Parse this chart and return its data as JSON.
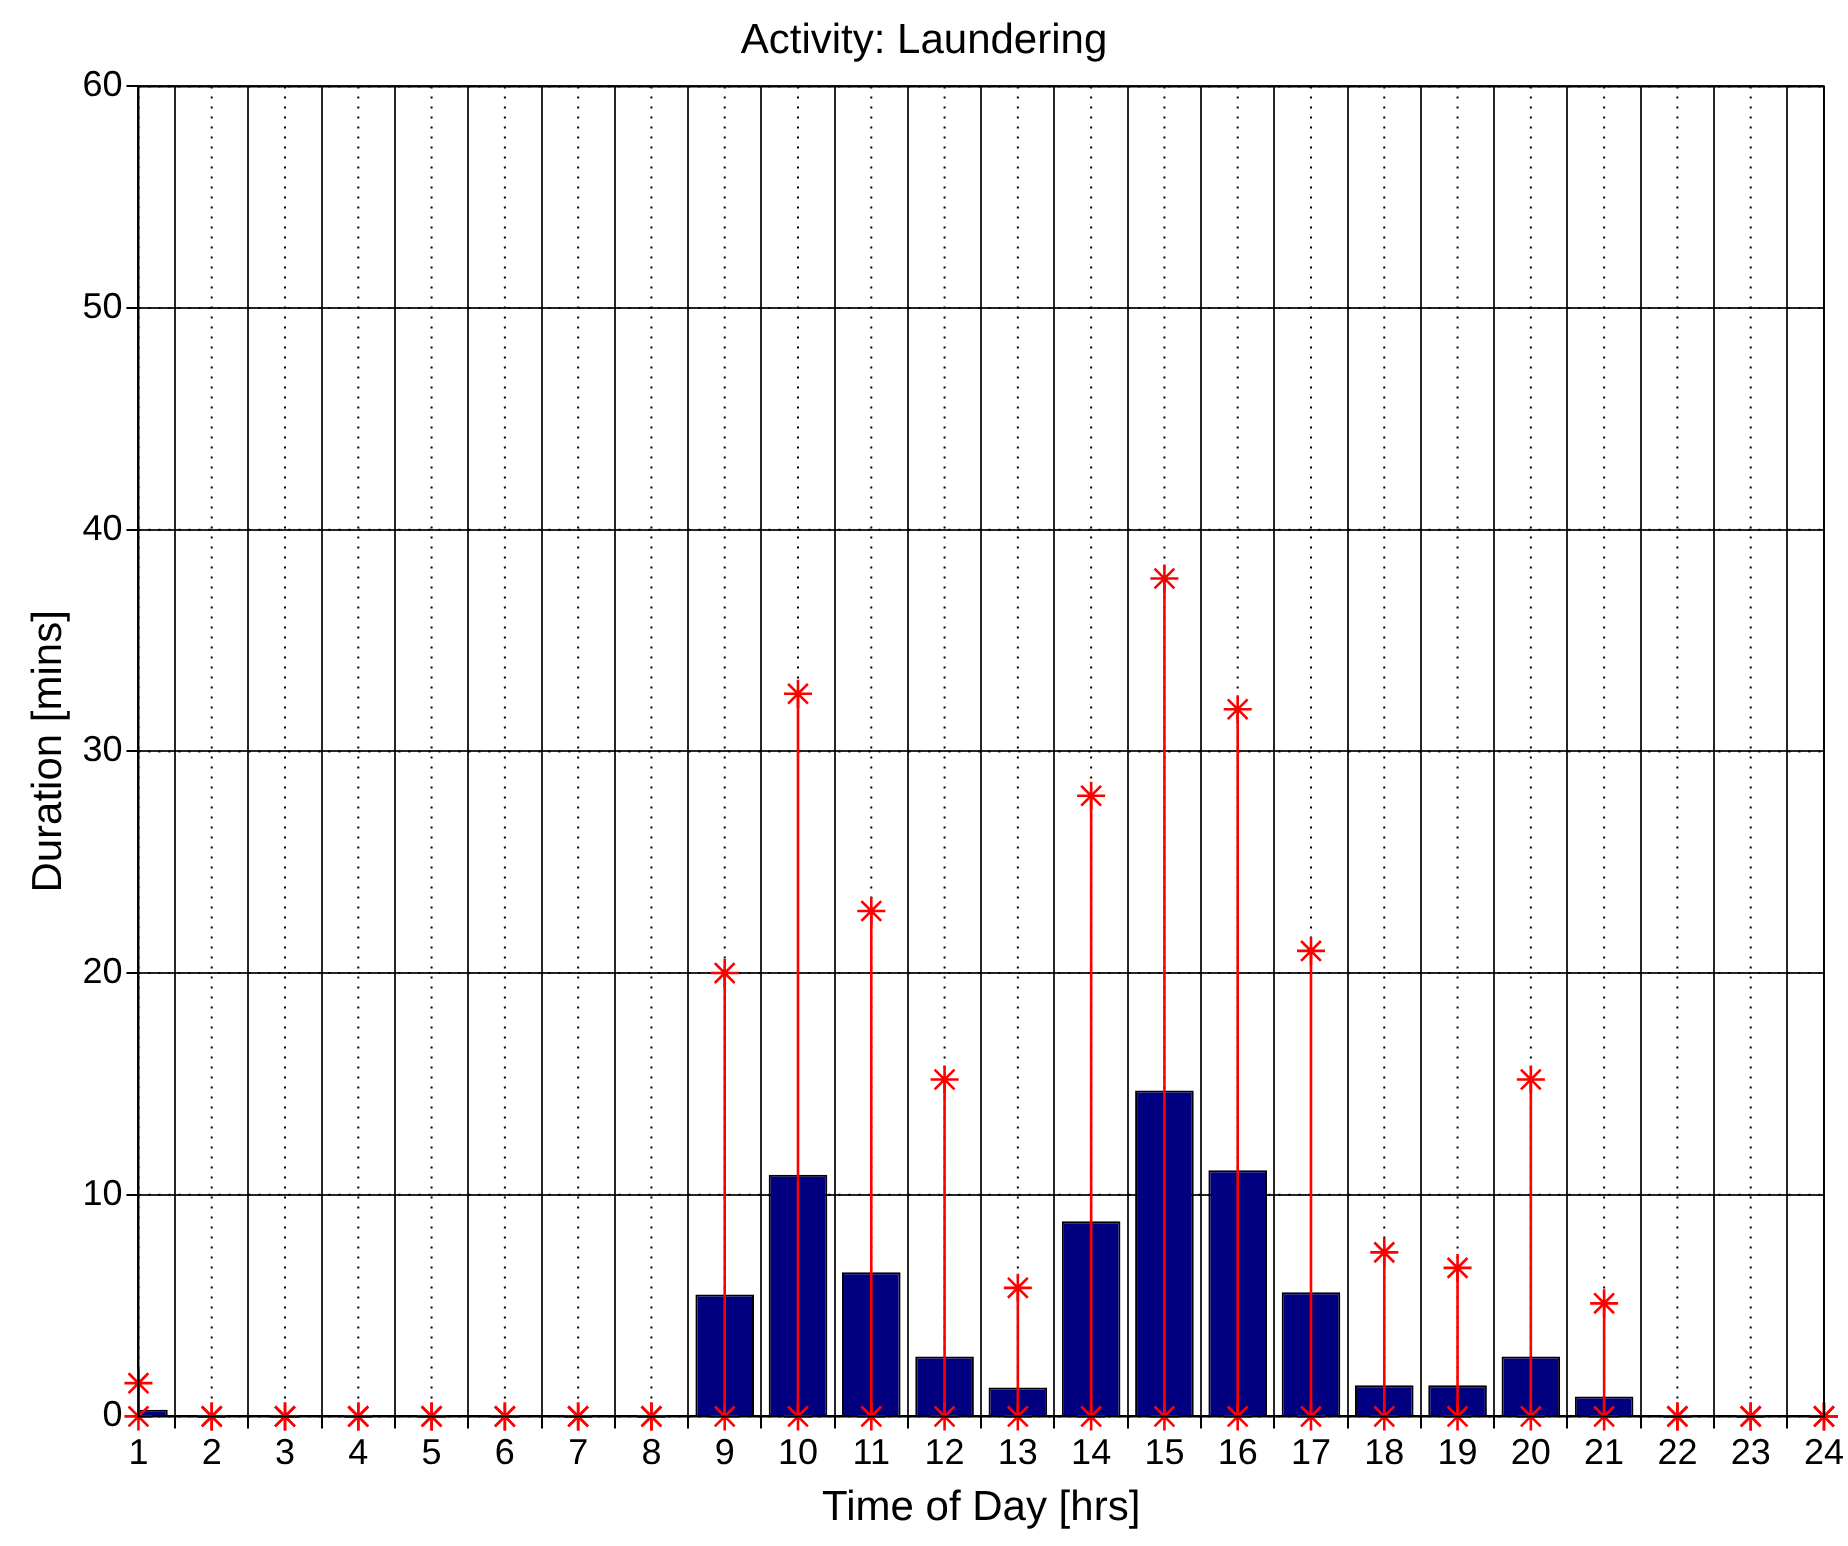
{
  "chart_data": {
    "type": "bar",
    "title": "Activity: Laundering",
    "xlabel": "Time of Day [hrs]",
    "ylabel": "Duration [mins]",
    "x": [
      1,
      2,
      3,
      4,
      5,
      6,
      7,
      8,
      9,
      10,
      11,
      12,
      13,
      14,
      15,
      16,
      17,
      18,
      19,
      20,
      21,
      22,
      23,
      24
    ],
    "series": [
      {
        "color": "#000080",
        "values": [
          0.3,
          0,
          0,
          0,
          0,
          0,
          0,
          0,
          5.5,
          10.9,
          6.5,
          2.7,
          1.3,
          8.8,
          14.7,
          11.1,
          5.6,
          1.4,
          1.4,
          2.7,
          0.9,
          0,
          0,
          0
        ],
        "errors": [
          [
            0,
            1.5
          ],
          [
            0,
            0
          ],
          [
            0,
            0
          ],
          [
            0,
            0
          ],
          [
            0,
            0
          ],
          [
            0,
            0
          ],
          [
            0,
            0
          ],
          [
            0,
            0
          ],
          [
            0,
            20
          ],
          [
            0,
            32.6
          ],
          [
            0,
            22.8
          ],
          [
            0,
            15.2
          ],
          [
            0,
            5.8
          ],
          [
            0,
            28
          ],
          [
            0,
            37.8
          ],
          [
            0,
            31.9
          ],
          [
            0,
            21
          ],
          [
            0,
            7.4
          ],
          [
            0,
            6.7
          ],
          [
            0,
            15.2
          ],
          [
            0,
            5.1
          ],
          [
            0,
            0
          ],
          [
            0,
            0
          ],
          [
            0,
            0
          ]
        ]
      }
    ],
    "xlim": [
      1,
      24
    ],
    "xticks": [
      1,
      2,
      3,
      4,
      5,
      6,
      7,
      8,
      9,
      10,
      11,
      12,
      13,
      14,
      15,
      16,
      17,
      18,
      19,
      20,
      21,
      22,
      23,
      24
    ],
    "ylim": [
      0,
      60
    ],
    "yticks": [
      0,
      10,
      20,
      30,
      40,
      50,
      60
    ],
    "grid": true,
    "marker": "star"
  }
}
